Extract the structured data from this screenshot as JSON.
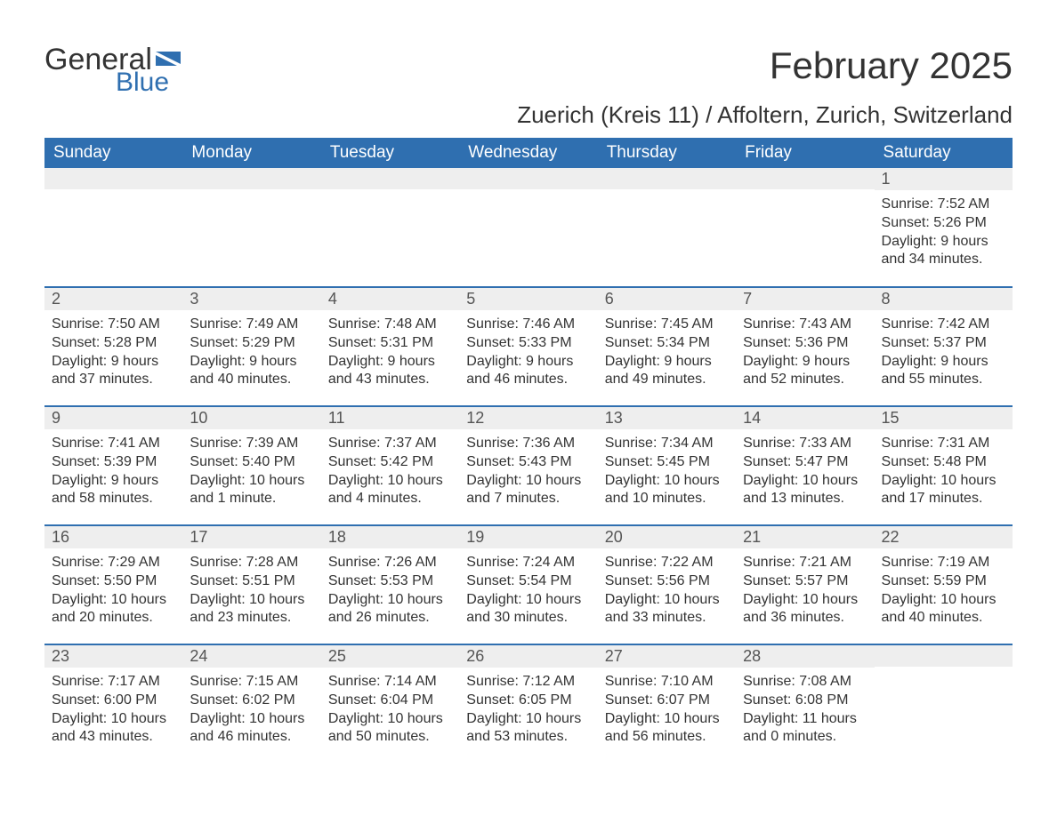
{
  "brand": {
    "name_part1": "General",
    "name_part2": "Blue",
    "flag_color": "#2f6fb0"
  },
  "title": "February 2025",
  "subtitle": "Zuerich (Kreis 11) / Affoltern, Zurich, Switzerland",
  "colors": {
    "header_bg": "#2f6fb0",
    "header_text": "#ffffff",
    "daynum_bg": "#eeeeee",
    "daynum_text": "#555555",
    "body_text": "#333333",
    "row_divider": "#2f6fb0",
    "page_bg": "#ffffff"
  },
  "typography": {
    "title_fontsize": 42,
    "subtitle_fontsize": 26,
    "header_fontsize": 19,
    "daynum_fontsize": 18,
    "body_fontsize": 16,
    "font_family": "Segoe UI"
  },
  "weekdays": [
    "Sunday",
    "Monday",
    "Tuesday",
    "Wednesday",
    "Thursday",
    "Friday",
    "Saturday"
  ],
  "weeks": [
    [
      null,
      null,
      null,
      null,
      null,
      null,
      {
        "day": "1",
        "sunrise": "Sunrise: 7:52 AM",
        "sunset": "Sunset: 5:26 PM",
        "dl1": "Daylight: 9 hours",
        "dl2": "and 34 minutes."
      }
    ],
    [
      {
        "day": "2",
        "sunrise": "Sunrise: 7:50 AM",
        "sunset": "Sunset: 5:28 PM",
        "dl1": "Daylight: 9 hours",
        "dl2": "and 37 minutes."
      },
      {
        "day": "3",
        "sunrise": "Sunrise: 7:49 AM",
        "sunset": "Sunset: 5:29 PM",
        "dl1": "Daylight: 9 hours",
        "dl2": "and 40 minutes."
      },
      {
        "day": "4",
        "sunrise": "Sunrise: 7:48 AM",
        "sunset": "Sunset: 5:31 PM",
        "dl1": "Daylight: 9 hours",
        "dl2": "and 43 minutes."
      },
      {
        "day": "5",
        "sunrise": "Sunrise: 7:46 AM",
        "sunset": "Sunset: 5:33 PM",
        "dl1": "Daylight: 9 hours",
        "dl2": "and 46 minutes."
      },
      {
        "day": "6",
        "sunrise": "Sunrise: 7:45 AM",
        "sunset": "Sunset: 5:34 PM",
        "dl1": "Daylight: 9 hours",
        "dl2": "and 49 minutes."
      },
      {
        "day": "7",
        "sunrise": "Sunrise: 7:43 AM",
        "sunset": "Sunset: 5:36 PM",
        "dl1": "Daylight: 9 hours",
        "dl2": "and 52 minutes."
      },
      {
        "day": "8",
        "sunrise": "Sunrise: 7:42 AM",
        "sunset": "Sunset: 5:37 PM",
        "dl1": "Daylight: 9 hours",
        "dl2": "and 55 minutes."
      }
    ],
    [
      {
        "day": "9",
        "sunrise": "Sunrise: 7:41 AM",
        "sunset": "Sunset: 5:39 PM",
        "dl1": "Daylight: 9 hours",
        "dl2": "and 58 minutes."
      },
      {
        "day": "10",
        "sunrise": "Sunrise: 7:39 AM",
        "sunset": "Sunset: 5:40 PM",
        "dl1": "Daylight: 10 hours",
        "dl2": "and 1 minute."
      },
      {
        "day": "11",
        "sunrise": "Sunrise: 7:37 AM",
        "sunset": "Sunset: 5:42 PM",
        "dl1": "Daylight: 10 hours",
        "dl2": "and 4 minutes."
      },
      {
        "day": "12",
        "sunrise": "Sunrise: 7:36 AM",
        "sunset": "Sunset: 5:43 PM",
        "dl1": "Daylight: 10 hours",
        "dl2": "and 7 minutes."
      },
      {
        "day": "13",
        "sunrise": "Sunrise: 7:34 AM",
        "sunset": "Sunset: 5:45 PM",
        "dl1": "Daylight: 10 hours",
        "dl2": "and 10 minutes."
      },
      {
        "day": "14",
        "sunrise": "Sunrise: 7:33 AM",
        "sunset": "Sunset: 5:47 PM",
        "dl1": "Daylight: 10 hours",
        "dl2": "and 13 minutes."
      },
      {
        "day": "15",
        "sunrise": "Sunrise: 7:31 AM",
        "sunset": "Sunset: 5:48 PM",
        "dl1": "Daylight: 10 hours",
        "dl2": "and 17 minutes."
      }
    ],
    [
      {
        "day": "16",
        "sunrise": "Sunrise: 7:29 AM",
        "sunset": "Sunset: 5:50 PM",
        "dl1": "Daylight: 10 hours",
        "dl2": "and 20 minutes."
      },
      {
        "day": "17",
        "sunrise": "Sunrise: 7:28 AM",
        "sunset": "Sunset: 5:51 PM",
        "dl1": "Daylight: 10 hours",
        "dl2": "and 23 minutes."
      },
      {
        "day": "18",
        "sunrise": "Sunrise: 7:26 AM",
        "sunset": "Sunset: 5:53 PM",
        "dl1": "Daylight: 10 hours",
        "dl2": "and 26 minutes."
      },
      {
        "day": "19",
        "sunrise": "Sunrise: 7:24 AM",
        "sunset": "Sunset: 5:54 PM",
        "dl1": "Daylight: 10 hours",
        "dl2": "and 30 minutes."
      },
      {
        "day": "20",
        "sunrise": "Sunrise: 7:22 AM",
        "sunset": "Sunset: 5:56 PM",
        "dl1": "Daylight: 10 hours",
        "dl2": "and 33 minutes."
      },
      {
        "day": "21",
        "sunrise": "Sunrise: 7:21 AM",
        "sunset": "Sunset: 5:57 PM",
        "dl1": "Daylight: 10 hours",
        "dl2": "and 36 minutes."
      },
      {
        "day": "22",
        "sunrise": "Sunrise: 7:19 AM",
        "sunset": "Sunset: 5:59 PM",
        "dl1": "Daylight: 10 hours",
        "dl2": "and 40 minutes."
      }
    ],
    [
      {
        "day": "23",
        "sunrise": "Sunrise: 7:17 AM",
        "sunset": "Sunset: 6:00 PM",
        "dl1": "Daylight: 10 hours",
        "dl2": "and 43 minutes."
      },
      {
        "day": "24",
        "sunrise": "Sunrise: 7:15 AM",
        "sunset": "Sunset: 6:02 PM",
        "dl1": "Daylight: 10 hours",
        "dl2": "and 46 minutes."
      },
      {
        "day": "25",
        "sunrise": "Sunrise: 7:14 AM",
        "sunset": "Sunset: 6:04 PM",
        "dl1": "Daylight: 10 hours",
        "dl2": "and 50 minutes."
      },
      {
        "day": "26",
        "sunrise": "Sunrise: 7:12 AM",
        "sunset": "Sunset: 6:05 PM",
        "dl1": "Daylight: 10 hours",
        "dl2": "and 53 minutes."
      },
      {
        "day": "27",
        "sunrise": "Sunrise: 7:10 AM",
        "sunset": "Sunset: 6:07 PM",
        "dl1": "Daylight: 10 hours",
        "dl2": "and 56 minutes."
      },
      {
        "day": "28",
        "sunrise": "Sunrise: 7:08 AM",
        "sunset": "Sunset: 6:08 PM",
        "dl1": "Daylight: 11 hours",
        "dl2": "and 0 minutes."
      },
      null
    ]
  ]
}
